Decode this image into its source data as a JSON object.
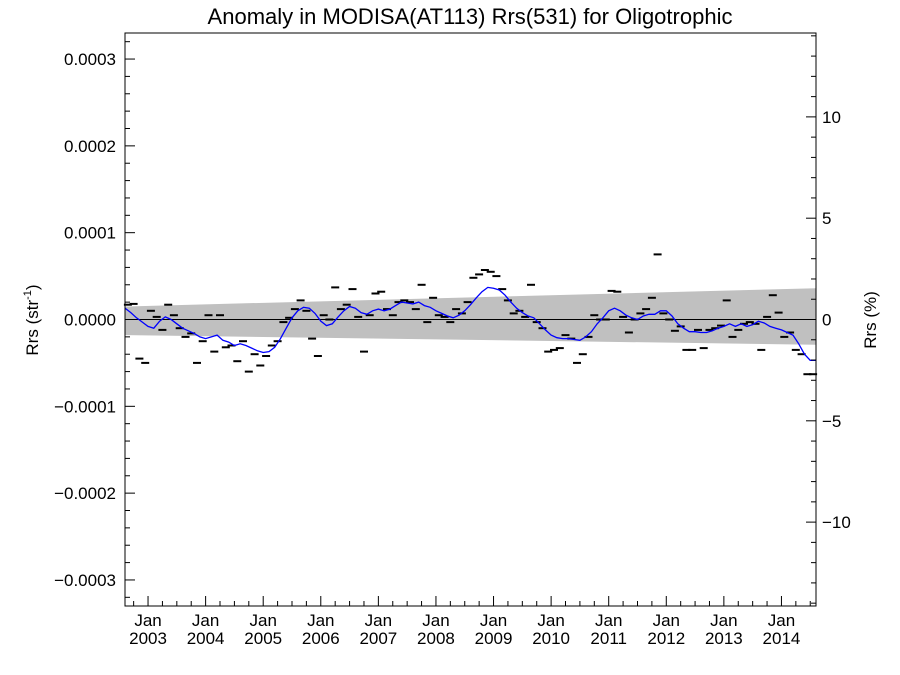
{
  "chart_data": {
    "type": "line",
    "title": "Anomaly in MODISA(AT113) Rrs(531) for Oligotrophic",
    "ylabel": "Rrs (str",
    "ylabel_sup": "-1",
    "ylabel_close": ")",
    "y2label": "Rrs (%)",
    "xlim": [
      2002.6,
      2014.6
    ],
    "ylim": [
      -0.00033,
      0.00033
    ],
    "y2lim": [
      -14.14,
      14.14
    ],
    "y_ticks": [
      {
        "value": -0.0003,
        "label": "−0.0003"
      },
      {
        "value": -0.0002,
        "label": "−0.0002"
      },
      {
        "value": -0.0001,
        "label": "−0.0001"
      },
      {
        "value": 0.0,
        "label": "0.0000"
      },
      {
        "value": 0.0001,
        "label": "0.0001"
      },
      {
        "value": 0.0002,
        "label": "0.0002"
      },
      {
        "value": 0.0003,
        "label": "0.0003"
      }
    ],
    "y2_ticks": [
      {
        "value": -10,
        "label": "−10"
      },
      {
        "value": -5,
        "label": "−5"
      },
      {
        "value": 0,
        "label": "0"
      },
      {
        "value": 5,
        "label": "5"
      },
      {
        "value": 10,
        "label": "10"
      }
    ],
    "x_ticks": [
      {
        "value": 2003.0,
        "month": "Jan",
        "year": "2003"
      },
      {
        "value": 2004.0,
        "month": "Jan",
        "year": "2004"
      },
      {
        "value": 2005.0,
        "month": "Jan",
        "year": "2005"
      },
      {
        "value": 2006.0,
        "month": "Jan",
        "year": "2006"
      },
      {
        "value": 2007.0,
        "month": "Jan",
        "year": "2007"
      },
      {
        "value": 2008.0,
        "month": "Jan",
        "year": "2008"
      },
      {
        "value": 2009.0,
        "month": "Jan",
        "year": "2009"
      },
      {
        "value": 2010.0,
        "month": "Jan",
        "year": "2010"
      },
      {
        "value": 2011.0,
        "month": "Jan",
        "year": "2011"
      },
      {
        "value": 2012.0,
        "month": "Jan",
        "year": "2012"
      },
      {
        "value": 2013.0,
        "month": "Jan",
        "year": "2013"
      },
      {
        "value": 2014.0,
        "month": "Jan",
        "year": "2014"
      }
    ],
    "band": {
      "color": "#c0c0c0",
      "x": [
        2002.6,
        2014.6
      ],
      "upper": [
        1.5e-05,
        3.6e-05
      ],
      "lower": [
        -1.8e-05,
        -2.9e-05
      ]
    },
    "zero_line": {
      "value": 0.0,
      "color": "#000000"
    },
    "series": [
      {
        "style": "dash-markers",
        "color": "#000000",
        "points": [
          [
            2002.65,
            1.7e-05
          ],
          [
            2002.75,
            1.8e-05
          ],
          [
            2002.85,
            -4.5e-05
          ],
          [
            2002.95,
            -5e-05
          ],
          [
            2003.05,
            1e-05
          ],
          [
            2003.15,
            3e-06
          ],
          [
            2003.25,
            -1.2e-05
          ],
          [
            2003.35,
            1.7e-05
          ],
          [
            2003.45,
            5e-06
          ],
          [
            2003.55,
            -1e-05
          ],
          [
            2003.65,
            -2e-05
          ],
          [
            2003.75,
            -1.6e-05
          ],
          [
            2003.85,
            -5e-05
          ],
          [
            2003.95,
            -2.5e-05
          ],
          [
            2004.05,
            5e-06
          ],
          [
            2004.15,
            -3.7e-05
          ],
          [
            2004.25,
            5e-06
          ],
          [
            2004.35,
            -3.2e-05
          ],
          [
            2004.45,
            -3e-05
          ],
          [
            2004.55,
            -4.8e-05
          ],
          [
            2004.65,
            -2.5e-05
          ],
          [
            2004.75,
            -6e-05
          ],
          [
            2004.85,
            -4e-05
          ],
          [
            2004.95,
            -5.3e-05
          ],
          [
            2005.05,
            -4.2e-05
          ],
          [
            2005.15,
            -3e-05
          ],
          [
            2005.25,
            -2.5e-05
          ],
          [
            2005.35,
            -3e-06
          ],
          [
            2005.45,
            2e-06
          ],
          [
            2005.55,
            1.2e-05
          ],
          [
            2005.65,
            2.2e-05
          ],
          [
            2005.75,
            1e-05
          ],
          [
            2005.85,
            -2.2e-05
          ],
          [
            2005.95,
            -4.2e-05
          ],
          [
            2006.05,
            5e-06
          ],
          [
            2006.15,
            0.0
          ],
          [
            2006.25,
            3.7e-05
          ],
          [
            2006.35,
            1.2e-05
          ],
          [
            2006.45,
            1.7e-05
          ],
          [
            2006.55,
            3.5e-05
          ],
          [
            2006.65,
            3e-06
          ],
          [
            2006.75,
            -3.7e-05
          ],
          [
            2006.85,
            5e-06
          ],
          [
            2006.95,
            3e-05
          ],
          [
            2007.05,
            3.2e-05
          ],
          [
            2007.15,
            1.2e-05
          ],
          [
            2007.25,
            5e-06
          ],
          [
            2007.35,
            2e-05
          ],
          [
            2007.45,
            2.2e-05
          ],
          [
            2007.55,
            2e-05
          ],
          [
            2007.65,
            1.2e-05
          ],
          [
            2007.75,
            4e-05
          ],
          [
            2007.85,
            -3e-06
          ],
          [
            2007.95,
            2.5e-05
          ],
          [
            2008.05,
            5e-06
          ],
          [
            2008.15,
            3e-06
          ],
          [
            2008.25,
            -3e-06
          ],
          [
            2008.35,
            1.2e-05
          ],
          [
            2008.45,
            7e-06
          ],
          [
            2008.55,
            2e-05
          ],
          [
            2008.65,
            4.8e-05
          ],
          [
            2008.75,
            5.2e-05
          ],
          [
            2008.85,
            5.7e-05
          ],
          [
            2008.95,
            5.5e-05
          ],
          [
            2009.05,
            5e-05
          ],
          [
            2009.15,
            3.5e-05
          ],
          [
            2009.25,
            2.2e-05
          ],
          [
            2009.35,
            7e-06
          ],
          [
            2009.45,
            1e-05
          ],
          [
            2009.55,
            3e-06
          ],
          [
            2009.65,
            4e-05
          ],
          [
            2009.75,
            -3e-06
          ],
          [
            2009.85,
            -1e-05
          ],
          [
            2009.95,
            -3.7e-05
          ],
          [
            2010.05,
            -3.5e-05
          ],
          [
            2010.15,
            -3.3e-05
          ],
          [
            2010.25,
            -1.8e-05
          ],
          [
            2010.35,
            -2.2e-05
          ],
          [
            2010.45,
            -5e-05
          ],
          [
            2010.55,
            -4e-05
          ],
          [
            2010.65,
            -2e-05
          ],
          [
            2010.75,
            5e-06
          ],
          [
            2010.85,
            0.0
          ],
          [
            2010.95,
            0.0
          ],
          [
            2011.05,
            3.3e-05
          ],
          [
            2011.15,
            3.2e-05
          ],
          [
            2011.25,
            3e-06
          ],
          [
            2011.35,
            -1.5e-05
          ],
          [
            2011.45,
            0.0
          ],
          [
            2011.55,
            7e-06
          ],
          [
            2011.65,
            1.2e-05
          ],
          [
            2011.75,
            2.5e-05
          ],
          [
            2011.85,
            7.5e-05
          ],
          [
            2011.95,
            7e-06
          ],
          [
            2012.05,
            0.0
          ],
          [
            2012.15,
            -1.3e-05
          ],
          [
            2012.25,
            -8e-06
          ],
          [
            2012.35,
            -3.5e-05
          ],
          [
            2012.45,
            -3.5e-05
          ],
          [
            2012.55,
            -1.2e-05
          ],
          [
            2012.65,
            -3.3e-05
          ],
          [
            2012.75,
            -1.2e-05
          ],
          [
            2012.85,
            -1e-05
          ],
          [
            2012.95,
            -7e-06
          ],
          [
            2013.05,
            2.2e-05
          ],
          [
            2013.15,
            -2e-05
          ],
          [
            2013.25,
            -1.2e-05
          ],
          [
            2013.35,
            -5e-06
          ],
          [
            2013.45,
            -3e-06
          ],
          [
            2013.55,
            -5e-06
          ],
          [
            2013.65,
            -3.5e-05
          ],
          [
            2013.75,
            3e-06
          ],
          [
            2013.85,
            2.8e-05
          ],
          [
            2013.95,
            8e-06
          ],
          [
            2014.05,
            -2e-05
          ],
          [
            2014.15,
            -1.5e-05
          ],
          [
            2014.25,
            -3.5e-05
          ],
          [
            2014.35,
            -4e-05
          ],
          [
            2014.45,
            -6.3e-05
          ],
          [
            2014.55,
            -6.3e-05
          ]
        ]
      },
      {
        "style": "line",
        "color": "#0000ff",
        "points": [
          [
            2002.6,
            1.3e-05
          ],
          [
            2002.7,
            8e-06
          ],
          [
            2002.8,
            2e-06
          ],
          [
            2002.9,
            -3e-06
          ],
          [
            2003.0,
            -8e-06
          ],
          [
            2003.1,
            -1e-05
          ],
          [
            2003.2,
            -2e-06
          ],
          [
            2003.3,
            3e-06
          ],
          [
            2003.4,
            0.0
          ],
          [
            2003.5,
            -5e-06
          ],
          [
            2003.6,
            -1e-05
          ],
          [
            2003.7,
            -1.3e-05
          ],
          [
            2003.8,
            -1.6e-05
          ],
          [
            2003.9,
            -2e-05
          ],
          [
            2004.0,
            -2.2e-05
          ],
          [
            2004.1,
            -2e-05
          ],
          [
            2004.2,
            -1.8e-05
          ],
          [
            2004.3,
            -2.4e-05
          ],
          [
            2004.4,
            -2.6e-05
          ],
          [
            2004.5,
            -3e-05
          ],
          [
            2004.6,
            -2.8e-05
          ],
          [
            2004.7,
            -3e-05
          ],
          [
            2004.8,
            -3.3e-05
          ],
          [
            2004.9,
            -3.6e-05
          ],
          [
            2005.0,
            -3.8e-05
          ],
          [
            2005.1,
            -3.7e-05
          ],
          [
            2005.2,
            -3.2e-05
          ],
          [
            2005.3,
            -2.2e-05
          ],
          [
            2005.4,
            -1e-05
          ],
          [
            2005.5,
            2e-06
          ],
          [
            2005.6,
            1e-05
          ],
          [
            2005.7,
            1.4e-05
          ],
          [
            2005.8,
            1.3e-05
          ],
          [
            2005.9,
            7e-06
          ],
          [
            2006.0,
            -2e-06
          ],
          [
            2006.1,
            -7e-06
          ],
          [
            2006.2,
            -5e-06
          ],
          [
            2006.3,
            3e-06
          ],
          [
            2006.4,
            1e-05
          ],
          [
            2006.5,
            1.5e-05
          ],
          [
            2006.6,
            1.3e-05
          ],
          [
            2006.7,
            8e-06
          ],
          [
            2006.8,
            6e-06
          ],
          [
            2006.9,
            1e-05
          ],
          [
            2007.0,
            1.2e-05
          ],
          [
            2007.1,
            1e-05
          ],
          [
            2007.2,
            1.2e-05
          ],
          [
            2007.3,
            1.6e-05
          ],
          [
            2007.4,
            2e-05
          ],
          [
            2007.5,
            1.9e-05
          ],
          [
            2007.6,
            1.8e-05
          ],
          [
            2007.7,
            2e-05
          ],
          [
            2007.8,
            1.6e-05
          ],
          [
            2007.9,
            1.4e-05
          ],
          [
            2008.0,
            1e-05
          ],
          [
            2008.1,
            7e-06
          ],
          [
            2008.2,
            4e-06
          ],
          [
            2008.3,
            2e-06
          ],
          [
            2008.4,
            5e-06
          ],
          [
            2008.5,
            1e-05
          ],
          [
            2008.6,
            1.7e-05
          ],
          [
            2008.7,
            2.5e-05
          ],
          [
            2008.8,
            3.2e-05
          ],
          [
            2008.9,
            3.7e-05
          ],
          [
            2009.0,
            3.6e-05
          ],
          [
            2009.1,
            3.4e-05
          ],
          [
            2009.2,
            2.8e-05
          ],
          [
            2009.3,
            2e-05
          ],
          [
            2009.4,
            1.3e-05
          ],
          [
            2009.5,
            8e-06
          ],
          [
            2009.6,
            4e-06
          ],
          [
            2009.7,
            2e-06
          ],
          [
            2009.8,
            -5e-06
          ],
          [
            2009.9,
            -1.2e-05
          ],
          [
            2010.0,
            -1.8e-05
          ],
          [
            2010.1,
            -2.1e-05
          ],
          [
            2010.2,
            -2.2e-05
          ],
          [
            2010.3,
            -2.2e-05
          ],
          [
            2010.4,
            -2.3e-05
          ],
          [
            2010.5,
            -2.4e-05
          ],
          [
            2010.6,
            -2e-05
          ],
          [
            2010.7,
            -1.4e-05
          ],
          [
            2010.8,
            -5e-06
          ],
          [
            2010.9,
            2e-06
          ],
          [
            2011.0,
            1e-05
          ],
          [
            2011.1,
            1.3e-05
          ],
          [
            2011.2,
            1e-05
          ],
          [
            2011.3,
            5e-06
          ],
          [
            2011.4,
            2e-06
          ],
          [
            2011.5,
            0.0
          ],
          [
            2011.6,
            4e-06
          ],
          [
            2011.7,
            6e-06
          ],
          [
            2011.8,
            6e-06
          ],
          [
            2011.9,
            1e-05
          ],
          [
            2012.0,
            1e-05
          ],
          [
            2012.1,
            4e-06
          ],
          [
            2012.2,
            -5e-06
          ],
          [
            2012.3,
            -1e-05
          ],
          [
            2012.4,
            -1.4e-05
          ],
          [
            2012.5,
            -1.4e-05
          ],
          [
            2012.6,
            -1.5e-05
          ],
          [
            2012.7,
            -1.5e-05
          ],
          [
            2012.8,
            -1.3e-05
          ],
          [
            2012.9,
            -1e-05
          ],
          [
            2013.0,
            -8e-06
          ],
          [
            2013.1,
            -5e-06
          ],
          [
            2013.2,
            -8e-06
          ],
          [
            2013.3,
            -5e-06
          ],
          [
            2013.4,
            -8e-06
          ],
          [
            2013.5,
            -6e-06
          ],
          [
            2013.6,
            -2e-06
          ],
          [
            2013.7,
            -4e-06
          ],
          [
            2013.8,
            -8e-06
          ],
          [
            2013.9,
            -1e-05
          ],
          [
            2014.0,
            -1.2e-05
          ],
          [
            2014.1,
            -1.5e-05
          ],
          [
            2014.2,
            -1.8e-05
          ],
          [
            2014.3,
            -2.8e-05
          ],
          [
            2014.4,
            -4e-05
          ],
          [
            2014.5,
            -4.7e-05
          ],
          [
            2014.6,
            -4.7e-05
          ]
        ]
      }
    ]
  }
}
